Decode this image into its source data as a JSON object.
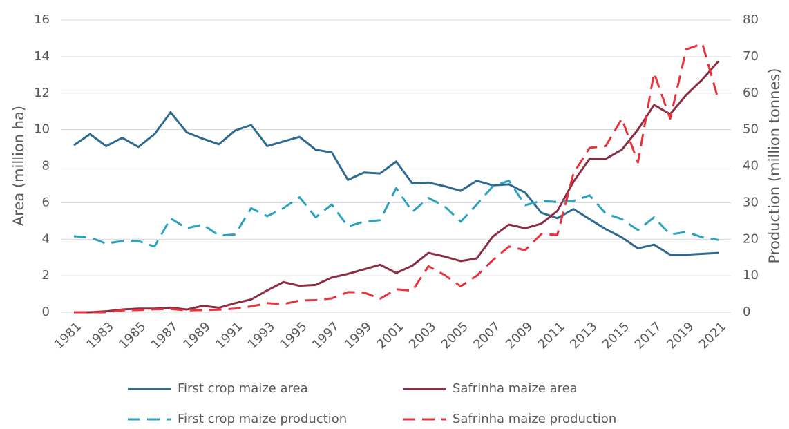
{
  "chart_data": {
    "type": "line",
    "x": [
      1981,
      1982,
      1983,
      1984,
      1985,
      1986,
      1987,
      1988,
      1989,
      1990,
      1991,
      1992,
      1993,
      1994,
      1995,
      1996,
      1997,
      1998,
      1999,
      2000,
      2001,
      2002,
      2003,
      2004,
      2005,
      2006,
      2007,
      2008,
      2009,
      2010,
      2011,
      2012,
      2013,
      2014,
      2015,
      2016,
      2017,
      2018,
      2019,
      2020,
      2021
    ],
    "xlim": [
      1981,
      2021
    ],
    "xticks": [
      1981,
      1983,
      1985,
      1987,
      1989,
      1991,
      1993,
      1995,
      1997,
      1999,
      2001,
      2003,
      2005,
      2007,
      2009,
      2011,
      2013,
      2015,
      2017,
      2019,
      2021
    ],
    "y_label": "Area (million ha)",
    "y2_label": "Production (million tonnes)",
    "ylim": [
      0,
      16
    ],
    "yticks": [
      0,
      2,
      4,
      6,
      8,
      10,
      12,
      14,
      16
    ],
    "y2lim": [
      0,
      80
    ],
    "y2ticks": [
      0,
      10,
      20,
      30,
      40,
      50,
      60,
      70,
      80
    ],
    "grid": true,
    "legend": "bottom",
    "series": [
      {
        "name": "First crop maize area",
        "color": "#2e6a8f",
        "dashed": false,
        "values": [
          9.15,
          9.75,
          9.1,
          9.55,
          9.05,
          9.75,
          10.95,
          9.85,
          9.5,
          9.2,
          9.95,
          10.25,
          9.1,
          9.35,
          9.6,
          8.9,
          8.75,
          7.25,
          7.65,
          7.6,
          8.25,
          7.05,
          7.1,
          6.9,
          6.65,
          7.2,
          6.95,
          7.0,
          6.55,
          5.45,
          5.15,
          5.65,
          5.1,
          4.55,
          4.1,
          3.5,
          3.7,
          3.15,
          3.15,
          3.2,
          3.25
        ]
      },
      {
        "name": "Safrinha maize area",
        "color": "#8b2e44",
        "dashed": false,
        "values": [
          0,
          0,
          0.05,
          0.15,
          0.2,
          0.2,
          0.25,
          0.15,
          0.35,
          0.25,
          0.5,
          0.7,
          1.2,
          1.65,
          1.45,
          1.5,
          1.9,
          2.1,
          2.35,
          2.6,
          2.15,
          2.55,
          3.25,
          3.05,
          2.8,
          2.95,
          4.15,
          4.8,
          4.6,
          4.85,
          5.55,
          7.15,
          8.4,
          8.4,
          8.9,
          10.0,
          11.35,
          10.85,
          11.9,
          12.75,
          13.75
        ]
      },
      {
        "name": "First crop maize production",
        "color": "#2aa3c0",
        "dashed": true,
        "axis": "y2",
        "values": [
          20.8,
          20.5,
          18.8,
          19.5,
          19.5,
          18.0,
          25.7,
          23.0,
          24.0,
          21.0,
          21.3,
          28.5,
          26.3,
          28.5,
          31.5,
          26.0,
          29.5,
          23.5,
          24.8,
          25.2,
          34.0,
          27.5,
          31.3,
          29.0,
          24.8,
          29.5,
          34.5,
          36.0,
          29.3,
          30.5,
          30.2,
          30.5,
          32.0,
          27.0,
          25.5,
          22.5,
          26.0,
          21.3,
          22.0,
          20.5,
          19.8
        ]
      },
      {
        "name": "Safrinha maize production",
        "color": "#e8323c",
        "dashed": true,
        "axis": "y2",
        "values": [
          0,
          0,
          0,
          0.5,
          0.6,
          0.8,
          0.9,
          0.5,
          0.6,
          0.7,
          1.0,
          1.6,
          2.5,
          2.2,
          3.2,
          3.3,
          3.8,
          5.5,
          5.4,
          3.7,
          6.3,
          5.9,
          12.6,
          10.2,
          7.1,
          10.0,
          14.3,
          18.0,
          17.0,
          21.4,
          21.2,
          38.0,
          45.0,
          45.5,
          53.0,
          41.0,
          65.5,
          53.0,
          72.0,
          73.5,
          58.0
        ]
      }
    ]
  }
}
